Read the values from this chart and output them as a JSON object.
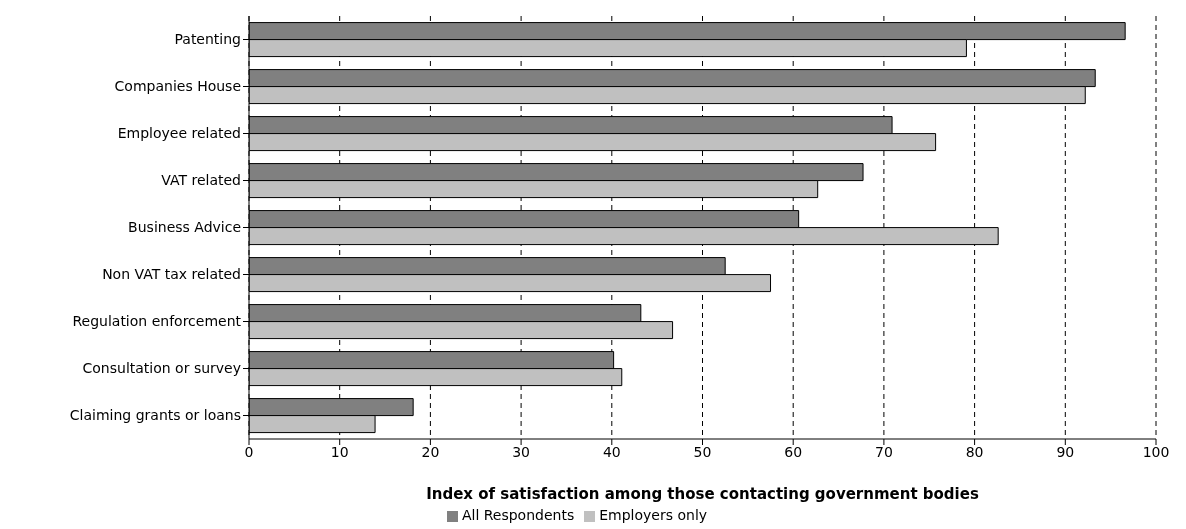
{
  "chart_data": {
    "type": "bar",
    "orientation": "horizontal",
    "xlabel": "Index of satisfaction among those contacting government bodies",
    "categories": [
      "Patenting",
      "Companies House",
      "Employee related",
      "VAT related",
      "Business Advice",
      "Non VAT tax related",
      "Regulation enforcement",
      "Consultation or survey",
      "Claiming grants or loans"
    ],
    "series": [
      {
        "name": "All Respondents",
        "color": "#808080",
        "values": [
          96.6,
          93.3,
          70.9,
          67.7,
          60.6,
          52.5,
          43.2,
          40.2,
          18.1
        ]
      },
      {
        "name": "Employers only",
        "color": "#c0c0c0",
        "values": [
          79.1,
          92.2,
          75.7,
          62.7,
          82.6,
          57.5,
          46.7,
          41.1,
          13.9
        ]
      }
    ],
    "xlim": [
      0,
      100
    ],
    "xticks": [
      0,
      10,
      20,
      30,
      40,
      50,
      60,
      70,
      80,
      90,
      100
    ],
    "grid": "x",
    "legend": "bottom"
  }
}
